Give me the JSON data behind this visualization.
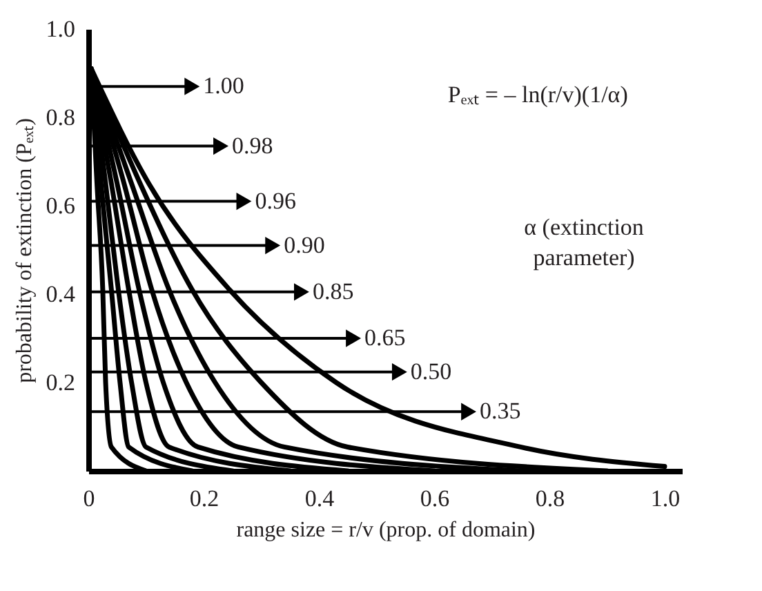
{
  "chart_data": {
    "type": "line",
    "xlabel": "range size = r/v (prop. of domain)",
    "ylabel": "probability of extinction (Pₑₓₜ)",
    "xlim": [
      0,
      1.03
    ],
    "ylim": [
      0,
      1.0
    ],
    "xticks": [
      {
        "value": 0,
        "label": "0"
      },
      0.2,
      0.4,
      0.6,
      0.8,
      {
        "value": 1,
        "label": "1.0"
      }
    ],
    "yticks": [
      0.2,
      0.4,
      0.6,
      0.8,
      {
        "value": 1,
        "label": "1.0"
      }
    ],
    "grid": false,
    "legend": false,
    "marker": "none",
    "line_style": "solid",
    "series": [
      {
        "color": "#000000",
        "x": [
          0.005,
          0.015,
          0.025,
          0.03,
          0.04,
          0.1
        ],
        "values": [
          0.91,
          0.65,
          0.41,
          0.2,
          0.054,
          0.0
        ]
      },
      {
        "color": "#000000",
        "x": [
          0.005,
          0.022,
          0.04,
          0.055,
          0.07,
          0.18
        ],
        "values": [
          0.91,
          0.65,
          0.41,
          0.2,
          0.054,
          0.0
        ]
      },
      {
        "color": "#000000",
        "x": [
          0.005,
          0.03,
          0.052,
          0.075,
          0.1,
          0.25
        ],
        "values": [
          0.91,
          0.65,
          0.41,
          0.2,
          0.054,
          0.0
        ]
      },
      {
        "color": "#000000",
        "x": [
          0.005,
          0.04,
          0.07,
          0.1,
          0.14,
          0.35
        ],
        "values": [
          0.91,
          0.65,
          0.41,
          0.2,
          0.054,
          0.0
        ]
      },
      {
        "color": "#000000",
        "x": [
          0.005,
          0.05,
          0.088,
          0.13,
          0.19,
          0.45
        ],
        "values": [
          0.91,
          0.65,
          0.41,
          0.2,
          0.054,
          0.0
        ]
      },
      {
        "color": "#000000",
        "x": [
          0.005,
          0.062,
          0.11,
          0.17,
          0.26,
          0.6
        ],
        "values": [
          0.91,
          0.65,
          0.41,
          0.2,
          0.054,
          0.0
        ]
      },
      {
        "color": "#000000",
        "x": [
          0.005,
          0.075,
          0.14,
          0.22,
          0.34,
          0.75
        ],
        "values": [
          0.91,
          0.65,
          0.41,
          0.2,
          0.054,
          0.0
        ]
      },
      {
        "color": "#000000",
        "x": [
          0.005,
          0.09,
          0.18,
          0.3,
          0.45,
          0.9
        ],
        "values": [
          0.91,
          0.65,
          0.41,
          0.2,
          0.054,
          0.0
        ]
      },
      {
        "color": "#000000",
        "x": [
          0.005,
          0.105,
          0.245,
          0.43,
          0.75,
          1.0
        ],
        "values": [
          0.91,
          0.65,
          0.41,
          0.2,
          0.054,
          0.01
        ]
      }
    ],
    "annotations": [
      {
        "text": "1.00",
        "x": 0.18,
        "y": 0.87
      },
      {
        "text": "0.98",
        "x": 0.23,
        "y": 0.735
      },
      {
        "text": "0.96",
        "x": 0.27,
        "y": 0.61
      },
      {
        "text": "0.90",
        "x": 0.32,
        "y": 0.51
      },
      {
        "text": "0.85",
        "x": 0.37,
        "y": 0.405
      },
      {
        "text": "0.65",
        "x": 0.46,
        "y": 0.3
      },
      {
        "text": "0.50",
        "x": 0.54,
        "y": 0.224
      },
      {
        "text": "0.35",
        "x": 0.66,
        "y": 0.134
      },
      "Pₑₓₜ = – ln(r/v)(1/α)",
      "α (extinction parameter)"
    ]
  }
}
